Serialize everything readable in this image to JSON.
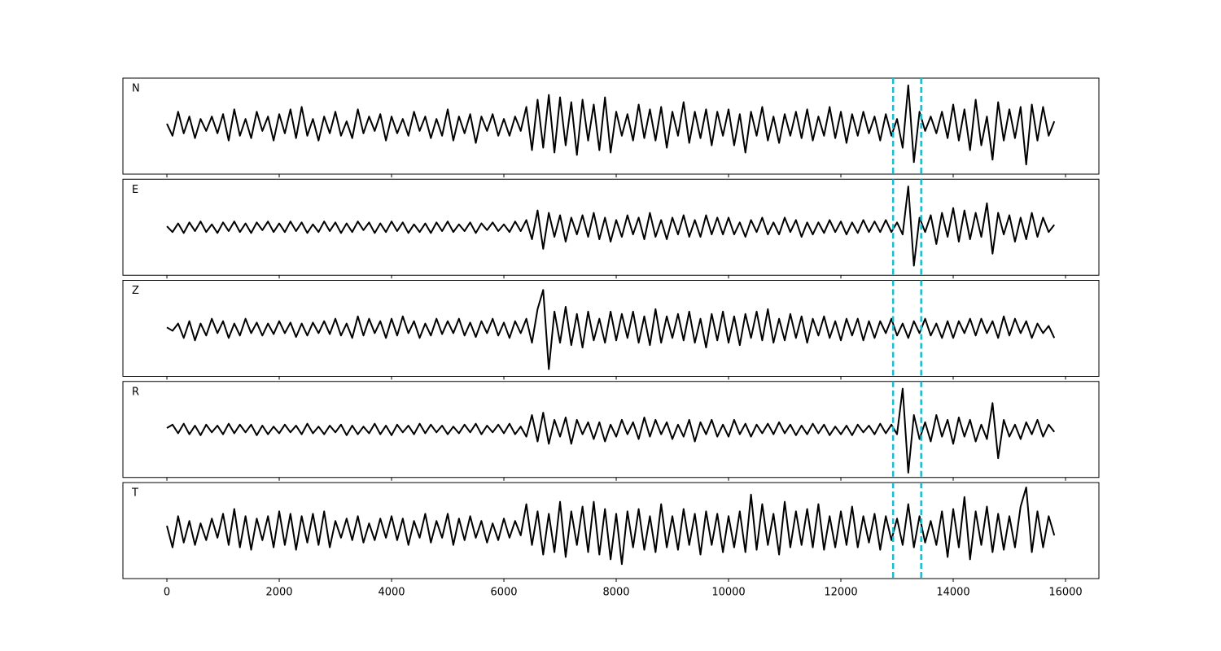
{
  "chart_data": {
    "type": "line",
    "x": [
      0,
      100,
      200,
      300,
      400,
      500,
      600,
      700,
      800,
      900,
      1000,
      1100,
      1200,
      1300,
      1400,
      1500,
      1600,
      1700,
      1800,
      1900,
      2000,
      2100,
      2200,
      2300,
      2400,
      2500,
      2600,
      2700,
      2800,
      2900,
      3000,
      3100,
      3200,
      3300,
      3400,
      3500,
      3600,
      3700,
      3800,
      3900,
      4000,
      4100,
      4200,
      4300,
      4400,
      4500,
      4600,
      4700,
      4800,
      4900,
      5000,
      5100,
      5200,
      5300,
      5400,
      5500,
      5600,
      5700,
      5800,
      5900,
      6000,
      6100,
      6200,
      6300,
      6400,
      6500,
      6600,
      6700,
      6800,
      6900,
      7000,
      7100,
      7200,
      7300,
      7400,
      7500,
      7600,
      7700,
      7800,
      7900,
      8000,
      8100,
      8200,
      8300,
      8400,
      8500,
      8600,
      8700,
      8800,
      8900,
      9000,
      9100,
      9200,
      9300,
      9400,
      9500,
      9600,
      9700,
      9800,
      9900,
      10000,
      10100,
      10200,
      10300,
      10400,
      10500,
      10600,
      10700,
      10800,
      10900,
      11000,
      11100,
      11200,
      11300,
      11400,
      11500,
      11600,
      11700,
      11800,
      11900,
      12000,
      12100,
      12200,
      12300,
      12400,
      12500,
      12600,
      12700,
      12800,
      12900,
      13000,
      13100,
      13200,
      13300,
      13400,
      13500,
      13600,
      13700,
      13800,
      13900,
      14000,
      14100,
      14200,
      14300,
      14400,
      14500,
      14600,
      14700,
      14800,
      14900,
      15000,
      15100,
      15200,
      15300,
      15400,
      15500,
      15600,
      15700,
      15800
    ],
    "xlim": [
      -783,
      16594
    ],
    "xticks": [
      0,
      2000,
      4000,
      6000,
      8000,
      10000,
      12000,
      14000,
      16000
    ],
    "ylim": [
      -1,
      1
    ],
    "markers": [
      12930,
      13430
    ],
    "marker_color": "#17becf",
    "series": [
      {
        "name": "N",
        "color": "#000000",
        "values": [
          0.05,
          -0.2,
          0.3,
          -0.15,
          0.2,
          -0.25,
          0.15,
          -0.1,
          0.2,
          -0.15,
          0.25,
          -0.3,
          0.35,
          -0.2,
          0.15,
          -0.25,
          0.3,
          -0.1,
          0.2,
          -0.3,
          0.25,
          -0.15,
          0.35,
          -0.25,
          0.4,
          -0.2,
          0.15,
          -0.3,
          0.2,
          -0.15,
          0.3,
          -0.2,
          0.1,
          -0.25,
          0.35,
          -0.15,
          0.2,
          -0.1,
          0.25,
          -0.3,
          0.2,
          -0.15,
          0.15,
          -0.2,
          0.3,
          -0.1,
          0.2,
          -0.25,
          0.15,
          -0.2,
          0.35,
          -0.3,
          0.2,
          -0.15,
          0.25,
          -0.35,
          0.2,
          -0.1,
          0.25,
          -0.2,
          0.15,
          -0.2,
          0.2,
          -0.1,
          0.4,
          -0.5,
          0.55,
          -0.45,
          0.65,
          -0.55,
          0.6,
          -0.4,
          0.5,
          -0.6,
          0.55,
          -0.3,
          0.45,
          -0.5,
          0.6,
          -0.55,
          0.3,
          -0.2,
          0.25,
          -0.3,
          0.45,
          -0.25,
          0.35,
          -0.3,
          0.4,
          -0.45,
          0.3,
          -0.2,
          0.5,
          -0.35,
          0.3,
          -0.25,
          0.35,
          -0.4,
          0.3,
          -0.2,
          0.35,
          -0.4,
          0.25,
          -0.55,
          0.3,
          -0.2,
          0.4,
          -0.3,
          0.2,
          -0.35,
          0.25,
          -0.2,
          0.3,
          -0.25,
          0.35,
          -0.3,
          0.2,
          -0.2,
          0.4,
          -0.25,
          0.3,
          -0.35,
          0.25,
          -0.2,
          0.3,
          -0.15,
          0.2,
          -0.3,
          0.25,
          -0.2,
          0.15,
          -0.45,
          0.85,
          -0.75,
          0.3,
          -0.1,
          0.2,
          -0.15,
          0.3,
          -0.25,
          0.45,
          -0.3,
          0.35,
          -0.5,
          0.55,
          -0.4,
          0.2,
          -0.7,
          0.5,
          -0.3,
          0.35,
          -0.25,
          0.4,
          -0.8,
          0.45,
          -0.3,
          0.4,
          -0.2,
          0.1
        ]
      },
      {
        "name": "E",
        "color": "#000000",
        "values": [
          0.02,
          -0.1,
          0.08,
          -0.12,
          0.1,
          -0.08,
          0.12,
          -0.1,
          0.06,
          -0.12,
          0.1,
          -0.08,
          0.12,
          -0.1,
          0.08,
          -0.12,
          0.1,
          -0.06,
          0.12,
          -0.1,
          0.08,
          -0.1,
          0.12,
          -0.08,
          0.1,
          -0.12,
          0.06,
          -0.1,
          0.12,
          -0.08,
          0.1,
          -0.12,
          0.08,
          -0.1,
          0.12,
          -0.06,
          0.1,
          -0.12,
          0.08,
          -0.1,
          0.12,
          -0.08,
          0.1,
          -0.12,
          0.06,
          -0.1,
          0.08,
          -0.12,
          0.1,
          -0.08,
          0.12,
          -0.1,
          0.06,
          -0.08,
          0.1,
          -0.12,
          0.08,
          -0.06,
          0.1,
          -0.08,
          0.06,
          -0.1,
          0.12,
          -0.08,
          0.15,
          -0.25,
          0.35,
          -0.45,
          0.3,
          -0.2,
          0.25,
          -0.3,
          0.2,
          -0.15,
          0.25,
          -0.2,
          0.3,
          -0.25,
          0.2,
          -0.3,
          0.15,
          -0.2,
          0.25,
          -0.15,
          0.2,
          -0.25,
          0.3,
          -0.2,
          0.15,
          -0.25,
          0.2,
          -0.15,
          0.25,
          -0.2,
          0.15,
          -0.2,
          0.25,
          -0.15,
          0.2,
          -0.15,
          0.2,
          -0.15,
          0.1,
          -0.2,
          0.15,
          -0.1,
          0.2,
          -0.15,
          0.1,
          -0.15,
          0.2,
          -0.1,
          0.15,
          -0.2,
          0.1,
          -0.15,
          0.1,
          -0.12,
          0.15,
          -0.1,
          0.12,
          -0.15,
          0.1,
          -0.12,
          0.15,
          -0.1,
          0.12,
          -0.1,
          0.15,
          -0.1,
          0.1,
          -0.15,
          0.85,
          -0.8,
          0.2,
          -0.1,
          0.25,
          -0.35,
          0.3,
          -0.2,
          0.4,
          -0.3,
          0.35,
          -0.25,
          0.3,
          -0.2,
          0.5,
          -0.55,
          0.3,
          -0.15,
          0.25,
          -0.3,
          0.2,
          -0.25,
          0.3,
          -0.2,
          0.2,
          -0.1,
          0.05
        ]
      },
      {
        "name": "Z",
        "color": "#000000",
        "values": [
          0.02,
          -0.05,
          0.1,
          -0.2,
          0.15,
          -0.25,
          0.1,
          -0.15,
          0.2,
          -0.1,
          0.15,
          -0.2,
          0.1,
          -0.15,
          0.2,
          -0.1,
          0.12,
          -0.15,
          0.1,
          -0.12,
          0.15,
          -0.1,
          0.12,
          -0.18,
          0.1,
          -0.15,
          0.12,
          -0.1,
          0.15,
          -0.12,
          0.2,
          -0.15,
          0.1,
          -0.2,
          0.25,
          -0.15,
          0.2,
          -0.1,
          0.15,
          -0.2,
          0.2,
          -0.15,
          0.25,
          -0.1,
          0.15,
          -0.2,
          0.1,
          -0.15,
          0.2,
          -0.12,
          0.15,
          -0.1,
          0.2,
          -0.15,
          0.12,
          -0.18,
          0.15,
          -0.1,
          0.2,
          -0.15,
          0.12,
          -0.2,
          0.15,
          -0.1,
          0.2,
          -0.3,
          0.4,
          0.8,
          -0.85,
          0.35,
          -0.3,
          0.45,
          -0.35,
          0.3,
          -0.4,
          0.35,
          -0.25,
          0.2,
          -0.3,
          0.35,
          -0.25,
          0.3,
          -0.2,
          0.35,
          -0.3,
          0.25,
          -0.35,
          0.4,
          -0.3,
          0.25,
          -0.2,
          0.3,
          -0.25,
          0.35,
          -0.3,
          0.2,
          -0.4,
          0.3,
          -0.25,
          0.35,
          -0.3,
          0.25,
          -0.35,
          0.3,
          -0.2,
          0.35,
          -0.25,
          0.4,
          -0.3,
          0.2,
          -0.25,
          0.3,
          -0.2,
          0.25,
          -0.3,
          0.2,
          -0.15,
          0.25,
          -0.2,
          0.15,
          -0.25,
          0.2,
          -0.15,
          0.2,
          -0.25,
          0.15,
          -0.2,
          0.15,
          -0.1,
          0.2,
          -0.15,
          0.1,
          -0.2,
          0.15,
          -0.1,
          0.2,
          -0.15,
          0.1,
          -0.2,
          0.15,
          -0.2,
          0.15,
          -0.1,
          0.2,
          -0.15,
          0.2,
          -0.1,
          0.15,
          -0.2,
          0.25,
          -0.15,
          0.2,
          -0.1,
          0.15,
          -0.2,
          0.1,
          -0.1,
          0.05,
          -0.2
        ]
      },
      {
        "name": "R",
        "color": "#000000",
        "values": [
          0.03,
          0.1,
          -0.08,
          0.12,
          -0.1,
          0.08,
          -0.12,
          0.1,
          -0.06,
          0.08,
          -0.1,
          0.12,
          -0.08,
          0.1,
          -0.06,
          0.1,
          -0.12,
          0.08,
          -0.1,
          0.06,
          -0.08,
          0.1,
          -0.06,
          0.08,
          -0.1,
          0.12,
          -0.08,
          0.06,
          -0.1,
          0.08,
          -0.06,
          0.1,
          -0.12,
          0.08,
          -0.1,
          0.06,
          -0.08,
          0.12,
          -0.1,
          0.08,
          -0.12,
          0.1,
          -0.06,
          0.08,
          -0.1,
          0.12,
          -0.08,
          0.1,
          -0.06,
          0.08,
          -0.1,
          0.06,
          -0.08,
          0.1,
          -0.06,
          0.12,
          -0.1,
          0.08,
          -0.06,
          0.1,
          -0.08,
          0.12,
          -0.1,
          0.06,
          -0.15,
          0.3,
          -0.25,
          0.35,
          -0.3,
          0.2,
          -0.15,
          0.25,
          -0.3,
          0.2,
          -0.1,
          0.15,
          -0.2,
          0.15,
          -0.25,
          0.1,
          -0.15,
          0.2,
          -0.1,
          0.15,
          -0.2,
          0.25,
          -0.15,
          0.2,
          -0.1,
          0.15,
          -0.2,
          0.1,
          -0.15,
          0.2,
          -0.25,
          0.15,
          -0.1,
          0.2,
          -0.15,
          0.1,
          -0.15,
          0.2,
          -0.1,
          0.12,
          -0.15,
          0.1,
          -0.08,
          0.12,
          -0.1,
          0.15,
          -0.08,
          0.1,
          -0.12,
          0.08,
          -0.1,
          0.12,
          -0.08,
          0.1,
          -0.12,
          0.06,
          -0.1,
          0.08,
          -0.12,
          0.1,
          -0.06,
          0.08,
          -0.1,
          0.12,
          -0.08,
          0.1,
          -0.1,
          0.85,
          -0.9,
          0.3,
          -0.2,
          0.15,
          -0.25,
          0.3,
          -0.15,
          0.2,
          -0.3,
          0.25,
          -0.15,
          0.2,
          -0.25,
          0.1,
          -0.2,
          0.55,
          -0.6,
          0.2,
          -0.15,
          0.1,
          -0.2,
          0.15,
          -0.1,
          0.2,
          -0.15,
          0.1,
          -0.05
        ]
      },
      {
        "name": "T",
        "color": "#000000",
        "values": [
          0.1,
          -0.35,
          0.3,
          -0.25,
          0.2,
          -0.3,
          0.15,
          -0.2,
          0.25,
          -0.15,
          0.35,
          -0.3,
          0.45,
          -0.35,
          0.3,
          -0.4,
          0.25,
          -0.2,
          0.3,
          -0.35,
          0.4,
          -0.3,
          0.35,
          -0.4,
          0.3,
          -0.25,
          0.35,
          -0.3,
          0.4,
          -0.35,
          0.2,
          -0.15,
          0.25,
          -0.2,
          0.3,
          -0.25,
          0.15,
          -0.2,
          0.25,
          -0.15,
          0.3,
          -0.2,
          0.25,
          -0.3,
          0.2,
          -0.15,
          0.35,
          -0.25,
          0.2,
          -0.15,
          0.35,
          -0.3,
          0.25,
          -0.2,
          0.3,
          -0.15,
          0.2,
          -0.25,
          0.15,
          -0.2,
          0.25,
          -0.15,
          0.2,
          -0.1,
          0.55,
          -0.3,
          0.4,
          -0.5,
          0.35,
          -0.45,
          0.6,
          -0.55,
          0.4,
          -0.3,
          0.5,
          -0.45,
          0.6,
          -0.5,
          0.45,
          -0.6,
          0.35,
          -0.7,
          0.4,
          -0.35,
          0.45,
          -0.4,
          0.3,
          -0.45,
          0.55,
          -0.35,
          0.3,
          -0.4,
          0.45,
          -0.3,
          0.35,
          -0.5,
          0.4,
          -0.3,
          0.35,
          -0.45,
          0.3,
          -0.35,
          0.4,
          -0.45,
          0.75,
          -0.4,
          0.55,
          -0.3,
          0.35,
          -0.5,
          0.6,
          -0.35,
          0.4,
          -0.3,
          0.45,
          -0.35,
          0.55,
          -0.4,
          0.3,
          -0.35,
          0.4,
          -0.3,
          0.5,
          -0.35,
          0.3,
          -0.25,
          0.35,
          -0.4,
          0.3,
          -0.2,
          0.25,
          -0.3,
          0.55,
          -0.35,
          0.3,
          -0.25,
          0.2,
          -0.3,
          0.4,
          -0.55,
          0.45,
          -0.35,
          0.7,
          -0.6,
          0.4,
          -0.3,
          0.5,
          -0.45,
          0.35,
          -0.4,
          0.3,
          -0.35,
          0.5,
          0.9,
          -0.45,
          0.4,
          -0.35,
          0.3,
          -0.1
        ]
      }
    ]
  }
}
